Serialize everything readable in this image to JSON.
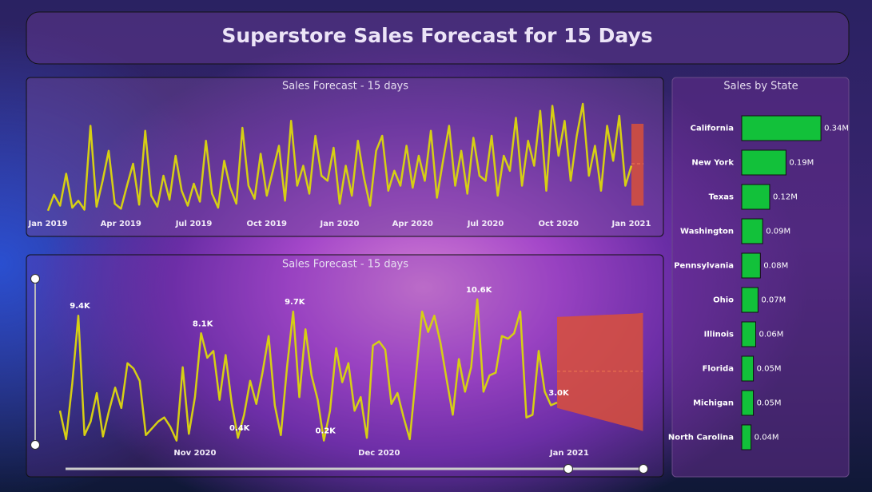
{
  "header": {
    "title": "Superstore Sales Forecast for 15 Days"
  },
  "chart_data": [
    {
      "type": "line",
      "title": "Sales Forecast - 15 days",
      "color": "#d6cf14",
      "forecast_color": "#d9503a",
      "ylim": [
        0,
        12000
      ],
      "categories": [
        "Jan 2019",
        null,
        null,
        null,
        null,
        null,
        null,
        null,
        null,
        null,
        null,
        null,
        "Apr 2019",
        null,
        null,
        null,
        null,
        null,
        null,
        null,
        null,
        null,
        null,
        null,
        "Jul 2019",
        null,
        null,
        null,
        null,
        null,
        null,
        null,
        null,
        null,
        null,
        null,
        "Oct 2019",
        null,
        null,
        null,
        null,
        null,
        null,
        null,
        null,
        null,
        null,
        null,
        "Jan 2020",
        null,
        null,
        null,
        null,
        null,
        null,
        null,
        null,
        null,
        null,
        null,
        "Apr 2020",
        null,
        null,
        null,
        null,
        null,
        null,
        null,
        null,
        null,
        null,
        null,
        "Jul 2020",
        null,
        null,
        null,
        null,
        null,
        null,
        null,
        null,
        null,
        null,
        null,
        "Oct 2020",
        null,
        null,
        null,
        null,
        null,
        null,
        null,
        null,
        null,
        null,
        null,
        "Jan 2021",
        null,
        null
      ],
      "values": [
        500,
        2100,
        1000,
        4200,
        800,
        1500,
        600,
        9000,
        900,
        3500,
        6500,
        1200,
        700,
        3000,
        5200,
        1100,
        8500,
        2000,
        900,
        4000,
        1600,
        6000,
        2500,
        1000,
        3200,
        1400,
        7500,
        2200,
        800,
        5500,
        2800,
        1200,
        8800,
        3000,
        1700,
        6200,
        2000,
        4500,
        7000,
        1500,
        9500,
        3000,
        5000,
        2200,
        8000,
        4000,
        3500,
        6800,
        1200,
        5000,
        2000,
        7500,
        3800,
        1000,
        6500,
        8000,
        2500,
        4500,
        3000,
        7000,
        2800,
        6000,
        3500,
        8500,
        1800,
        5500,
        9000,
        3000,
        6500,
        2200,
        7800,
        4000,
        3500,
        8000,
        2000,
        6000,
        4500,
        9800,
        3000,
        7500,
        5000,
        10500,
        2500,
        11000,
        6000,
        9500,
        3500,
        8000,
        11200,
        4000,
        7000,
        2500,
        9000,
        5500,
        10000,
        3000,
        5000,
        null,
        null
      ],
      "forecast": {
        "values": [
          null,
          null,
          null,
          null,
          null,
          null,
          null,
          null,
          null,
          null,
          null,
          null,
          null,
          null,
          null,
          null,
          null,
          null,
          null,
          null,
          null,
          null,
          null,
          null,
          null,
          null,
          null,
          null,
          null,
          null,
          null,
          null,
          null,
          null,
          null,
          null,
          null,
          null,
          null,
          null,
          null,
          null,
          null,
          null,
          null,
          null,
          null,
          null,
          null,
          null,
          null,
          null,
          null,
          null,
          null,
          null,
          null,
          null,
          null,
          null,
          null,
          null,
          null,
          null,
          null,
          null,
          null,
          null,
          null,
          null,
          null,
          null,
          null,
          null,
          null,
          null,
          null,
          null,
          null,
          null,
          null,
          null,
          null,
          null,
          null,
          null,
          null,
          null,
          null,
          null,
          null,
          null,
          null,
          null,
          null,
          null,
          5200,
          5200,
          5200
        ],
        "upper": [
          null,
          null,
          null,
          null,
          null,
          null,
          null,
          null,
          null,
          null,
          null,
          null,
          null,
          null,
          null,
          null,
          null,
          null,
          null,
          null,
          null,
          null,
          null,
          null,
          null,
          null,
          null,
          null,
          null,
          null,
          null,
          null,
          null,
          null,
          null,
          null,
          null,
          null,
          null,
          null,
          null,
          null,
          null,
          null,
          null,
          null,
          null,
          null,
          null,
          null,
          null,
          null,
          null,
          null,
          null,
          null,
          null,
          null,
          null,
          null,
          null,
          null,
          null,
          null,
          null,
          null,
          null,
          null,
          null,
          null,
          null,
          null,
          null,
          null,
          null,
          null,
          null,
          null,
          null,
          null,
          null,
          null,
          null,
          null,
          null,
          null,
          null,
          null,
          null,
          null,
          null,
          null,
          null,
          null,
          null,
          null,
          9200,
          9200,
          9200
        ],
        "lower": [
          null,
          null,
          null,
          null,
          null,
          null,
          null,
          null,
          null,
          null,
          null,
          null,
          null,
          null,
          null,
          null,
          null,
          null,
          null,
          null,
          null,
          null,
          null,
          null,
          null,
          null,
          null,
          null,
          null,
          null,
          null,
          null,
          null,
          null,
          null,
          null,
          null,
          null,
          null,
          null,
          null,
          null,
          null,
          null,
          null,
          null,
          null,
          null,
          null,
          null,
          null,
          null,
          null,
          null,
          null,
          null,
          null,
          null,
          null,
          null,
          null,
          null,
          null,
          null,
          null,
          null,
          null,
          null,
          null,
          null,
          null,
          null,
          null,
          null,
          null,
          null,
          null,
          null,
          null,
          null,
          null,
          null,
          null,
          null,
          null,
          null,
          null,
          null,
          null,
          null,
          null,
          null,
          null,
          null,
          null,
          null,
          1000,
          1000,
          1000
        ]
      }
    },
    {
      "type": "line",
      "title": "Sales Forecast - 15 days",
      "color": "#d6cf14",
      "forecast_color": "#d9503a",
      "ylim": [
        0,
        12000
      ],
      "categories": [
        null,
        null,
        null,
        null,
        null,
        null,
        null,
        null,
        null,
        null,
        null,
        null,
        null,
        null,
        null,
        null,
        null,
        null,
        null,
        null,
        null,
        null,
        "Nov 2020",
        null,
        null,
        null,
        null,
        null,
        null,
        null,
        null,
        null,
        null,
        null,
        null,
        null,
        null,
        null,
        null,
        null,
        null,
        null,
        null,
        null,
        null,
        null,
        null,
        null,
        null,
        null,
        null,
        null,
        "Dec 2020",
        null,
        null,
        null,
        null,
        null,
        null,
        null,
        null,
        null,
        null,
        null,
        null,
        null,
        null,
        null,
        null,
        null,
        null,
        null,
        null,
        null,
        null,
        null,
        null,
        null,
        null,
        null,
        null,
        null,
        null,
        "Jan 2021",
        null,
        null,
        null,
        null,
        null,
        null,
        null,
        null,
        null,
        null,
        null,
        null
      ],
      "values": [
        2400,
        300,
        4400,
        9400,
        600,
        1600,
        3700,
        500,
        2400,
        4100,
        2600,
        5900,
        5500,
        4600,
        600,
        1100,
        1600,
        1900,
        1200,
        200,
        5600,
        700,
        3400,
        8100,
        6300,
        6800,
        3200,
        6500,
        2900,
        400,
        2100,
        4600,
        2900,
        5200,
        7900,
        2800,
        600,
        5600,
        9700,
        3400,
        8400,
        5000,
        3200,
        200,
        2400,
        7000,
        4500,
        5900,
        2400,
        3400,
        400,
        7200,
        7500,
        6900,
        2900,
        3700,
        1900,
        300,
        5000,
        9700,
        8200,
        9400,
        7400,
        4700,
        2100,
        6200,
        3800,
        5600,
        10600,
        3800,
        5000,
        5200,
        7900,
        7700,
        8100,
        9700,
        1900,
        2100,
        6800,
        3800,
        2800,
        3000,
        null,
        null,
        null,
        null,
        null,
        null,
        null,
        null,
        null,
        null,
        null,
        null,
        null,
        null
      ],
      "value_labels": [
        null,
        null,
        null,
        "9.4K",
        null,
        null,
        null,
        null,
        null,
        null,
        null,
        null,
        null,
        null,
        null,
        null,
        null,
        null,
        null,
        null,
        null,
        null,
        null,
        "8.1K",
        null,
        null,
        null,
        null,
        null,
        "0.4K",
        null,
        null,
        null,
        null,
        null,
        null,
        null,
        null,
        "9.7K",
        null,
        null,
        null,
        null,
        "0.2K",
        null,
        null,
        null,
        null,
        null,
        null,
        null,
        null,
        null,
        null,
        null,
        null,
        null,
        null,
        null,
        null,
        null,
        null,
        null,
        null,
        null,
        null,
        null,
        null,
        "10.6K",
        null,
        null,
        null,
        null,
        null,
        null,
        null,
        null,
        null,
        null,
        null,
        null,
        "3.0K",
        null,
        null,
        null,
        null,
        null,
        null,
        null,
        null,
        null,
        null,
        null,
        null,
        null,
        null
      ],
      "forecast": {
        "values": [
          null,
          null,
          null,
          null,
          null,
          null,
          null,
          null,
          null,
          null,
          null,
          null,
          null,
          null,
          null,
          null,
          null,
          null,
          null,
          null,
          null,
          null,
          null,
          null,
          null,
          null,
          null,
          null,
          null,
          null,
          null,
          null,
          null,
          null,
          null,
          null,
          null,
          null,
          null,
          null,
          null,
          null,
          null,
          null,
          null,
          null,
          null,
          null,
          null,
          null,
          null,
          null,
          null,
          null,
          null,
          null,
          null,
          null,
          null,
          null,
          null,
          null,
          null,
          null,
          null,
          null,
          null,
          null,
          null,
          null,
          null,
          null,
          null,
          null,
          null,
          null,
          null,
          null,
          null,
          null,
          null,
          5300,
          5300,
          5300,
          5300,
          5300,
          5300,
          5300,
          5300,
          5300,
          5300,
          5300,
          5300,
          5300,
          5300,
          5300
        ],
        "upper": [
          null,
          null,
          null,
          null,
          null,
          null,
          null,
          null,
          null,
          null,
          null,
          null,
          null,
          null,
          null,
          null,
          null,
          null,
          null,
          null,
          null,
          null,
          null,
          null,
          null,
          null,
          null,
          null,
          null,
          null,
          null,
          null,
          null,
          null,
          null,
          null,
          null,
          null,
          null,
          null,
          null,
          null,
          null,
          null,
          null,
          null,
          null,
          null,
          null,
          null,
          null,
          null,
          null,
          null,
          null,
          null,
          null,
          null,
          null,
          null,
          null,
          null,
          null,
          null,
          null,
          null,
          null,
          null,
          null,
          null,
          null,
          null,
          null,
          null,
          null,
          null,
          null,
          null,
          null,
          null,
          null,
          9300,
          9320,
          9340,
          9360,
          9380,
          9400,
          9420,
          9440,
          9460,
          9480,
          9500,
          9520,
          9540,
          9560,
          9600
        ],
        "lower": [
          null,
          null,
          null,
          null,
          null,
          null,
          null,
          null,
          null,
          null,
          null,
          null,
          null,
          null,
          null,
          null,
          null,
          null,
          null,
          null,
          null,
          null,
          null,
          null,
          null,
          null,
          null,
          null,
          null,
          null,
          null,
          null,
          null,
          null,
          null,
          null,
          null,
          null,
          null,
          null,
          null,
          null,
          null,
          null,
          null,
          null,
          null,
          null,
          null,
          null,
          null,
          null,
          null,
          null,
          null,
          null,
          null,
          null,
          null,
          null,
          null,
          null,
          null,
          null,
          null,
          null,
          null,
          null,
          null,
          null,
          null,
          null,
          null,
          null,
          null,
          null,
          null,
          null,
          null,
          null,
          null,
          2600,
          2480,
          2360,
          2240,
          2120,
          2000,
          1880,
          1760,
          1640,
          1520,
          1400,
          1280,
          1160,
          1040,
          900
        ]
      }
    },
    {
      "type": "bar",
      "orientation": "horizontal",
      "title": "Sales by State",
      "color": "#12c13a",
      "xlim": [
        0,
        350000
      ],
      "categories": [
        "California",
        "New York",
        "Texas",
        "Washington",
        "Pennsylvania",
        "Ohio",
        "Illinois",
        "Florida",
        "Michigan",
        "North Carolina"
      ],
      "values": [
        340000,
        190000,
        120000,
        90000,
        80000,
        70000,
        60000,
        50000,
        50000,
        40000
      ],
      "value_labels": [
        "0.34M",
        "0.19M",
        "0.12M",
        "0.09M",
        "0.08M",
        "0.07M",
        "0.06M",
        "0.05M",
        "0.05M",
        "0.04M"
      ]
    }
  ]
}
